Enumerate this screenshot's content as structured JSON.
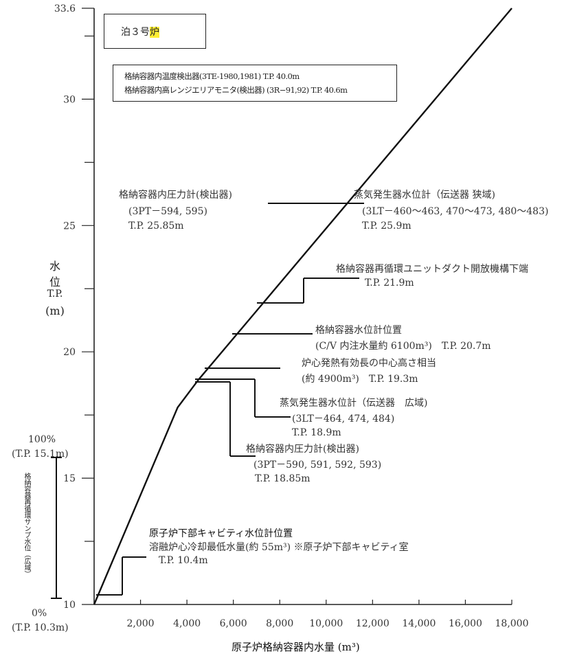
{
  "chart_data": {
    "type": "line",
    "title": "泊３号炉",
    "xlabel": "原子炉格納容器内水量 (m³)",
    "ylabel": {
      "line1": "水",
      "line2": "位",
      "line3": "T.P.",
      "line4": "(m)"
    },
    "xlim": [
      0,
      18000
    ],
    "ylim": [
      10,
      33.6
    ],
    "x_ticks": [
      "2,000",
      "4,000",
      "6,000",
      "8,000",
      "10,000",
      "12,000",
      "14,000",
      "16,000",
      "18,000"
    ],
    "y_ticks": [
      {
        "value": 10,
        "label": "10"
      },
      {
        "value": 15,
        "label": "15"
      },
      {
        "value": 20,
        "label": "20"
      },
      {
        "value": 25,
        "label": "25"
      },
      {
        "value": 30,
        "label": "30"
      },
      {
        "value": 33.6,
        "label": "33.6"
      }
    ],
    "series": [
      {
        "x": [
          0,
          3600,
          4500,
          18000
        ],
        "y": [
          10,
          17.8,
          18.9,
          33.6
        ]
      }
    ]
  },
  "title_box": {
    "text_a": "泊３号",
    "text_b": "炉"
  },
  "sensors": {
    "line1": "格納容器内温度検出器(3TE-1980,1981) T.P. 40.0m",
    "line2": "格納容器内高レンジエリアモニタ(検出器) (3R−91,92) T.P. 40.6m"
  },
  "annotations": {
    "pt594": {
      "l1": "格納容器内圧力計(検出器)",
      "l2": "(3PT－594, 595)",
      "l3": "T.P. 25.85m"
    },
    "sg_narrow": {
      "l1": "蒸気発生器水位計（伝送器 狭域)",
      "l2": "(3LT－460～463, 470～473, 480～483)",
      "l3": "T.P. 25.9m"
    },
    "duct": {
      "l1": "格納容器再循環ユニットダクト開放機構下端",
      "l2": "T.P. 21.9m"
    },
    "cv_level": {
      "l1": "格納容器水位計位置",
      "l2": "(C/V 内注水量約 6100m³)　T.P. 20.7m"
    },
    "core_center": {
      "l1": "炉心発熱有効長の中心高さ相当",
      "l2": "(約 4900m³)　T.P. 19.3m"
    },
    "sg_wide": {
      "l1": "蒸気発生器水位計（伝送器　広域)",
      "l2": "(3LT－464, 474, 484)",
      "l3": "T.P. 18.9m"
    },
    "pt590": {
      "l1": "格納容器内圧力計(検出器)",
      "l2": "(3PT－590, 591, 592, 593)",
      "l3": "T.P. 18.85m"
    },
    "cavity": {
      "l1": "原子炉下部キャビティ水位計位置",
      "l2": "溶融炉心冷却最低水量(約 55m³) ※原子炉下部キャビティ室",
      "l3": "T.P. 10.4m"
    }
  },
  "sump": {
    "top_pct": "100%",
    "top_tp": "(T.P. 15.1m)",
    "bottom_pct": "0%",
    "bottom_tp": "(T.P. 10.3m)",
    "label": "格納容器再循環サンプ水位（広域）"
  }
}
